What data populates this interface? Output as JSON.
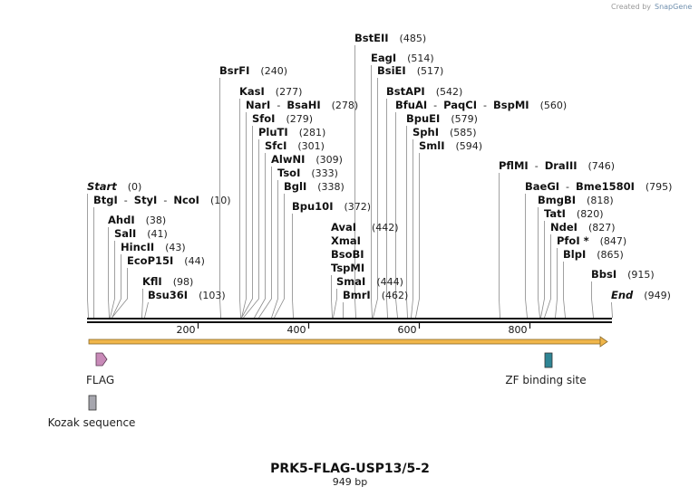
{
  "credit": {
    "prefix": "Created by",
    "brand": "SnapGene"
  },
  "map": {
    "name": "PRK5-FLAG-USP13/5-2",
    "length_label": "949 bp",
    "length": 949
  },
  "enzymes": [
    {
      "names": [
        "BstEII"
      ],
      "pos": 485,
      "label": "(485)"
    },
    {
      "names": [
        "EagI"
      ],
      "pos": 514,
      "label": "(514)"
    },
    {
      "names": [
        "BsiEI"
      ],
      "pos": 517,
      "label": "(517)"
    },
    {
      "names": [
        "BsrFI"
      ],
      "pos": 240,
      "label": "(240)"
    },
    {
      "names": [
        "BstAPI"
      ],
      "pos": 542,
      "label": "(542)"
    },
    {
      "names": [
        "KasI"
      ],
      "pos": 277,
      "label": "(277)"
    },
    {
      "names": [
        "NarI",
        "BsaHI"
      ],
      "pos": 278,
      "label": "(278)"
    },
    {
      "names": [
        "BfuAI",
        "PaqCI",
        "BspMI"
      ],
      "pos": 560,
      "label": "(560)"
    },
    {
      "names": [
        "SfoI"
      ],
      "pos": 279,
      "label": "(279)"
    },
    {
      "names": [
        "BpuEI"
      ],
      "pos": 579,
      "label": "(579)"
    },
    {
      "names": [
        "PluTI"
      ],
      "pos": 281,
      "label": "(281)"
    },
    {
      "names": [
        "SphI"
      ],
      "pos": 585,
      "label": "(585)"
    },
    {
      "names": [
        "SfcI"
      ],
      "pos": 301,
      "label": "(301)"
    },
    {
      "names": [
        "SmlI"
      ],
      "pos": 594,
      "label": "(594)"
    },
    {
      "names": [
        "AlwNI"
      ],
      "pos": 309,
      "label": "(309)"
    },
    {
      "names": [
        "PflMI",
        "DraIII"
      ],
      "pos": 746,
      "label": "(746)"
    },
    {
      "names": [
        "TsoI"
      ],
      "pos": 333,
      "label": "(333)"
    },
    {
      "names": [
        "BglI"
      ],
      "pos": 338,
      "label": "(338)"
    },
    {
      "names": [
        "BaeGI",
        "Bme1580I"
      ],
      "pos": 795,
      "label": "(795)"
    },
    {
      "names": [
        "Start"
      ],
      "pos": 0,
      "label": "(0)",
      "italic": true
    },
    {
      "names": [
        "BtgI",
        "StyI",
        "NcoI"
      ],
      "pos": 10,
      "label": "(10)"
    },
    {
      "names": [
        "Bpu10I"
      ],
      "pos": 372,
      "label": "(372)"
    },
    {
      "names": [
        "BmgBI"
      ],
      "pos": 818,
      "label": "(818)"
    },
    {
      "names": [
        "TatI"
      ],
      "pos": 820,
      "label": "(820)"
    },
    {
      "names": [
        "AhdI"
      ],
      "pos": 38,
      "label": "(38)"
    },
    {
      "names": [
        "AvaI",
        "XmaI",
        "BsoBI",
        "TspMI"
      ],
      "pos": 442,
      "label": "(442)"
    },
    {
      "names": [
        "NdeI"
      ],
      "pos": 827,
      "label": "(827)"
    },
    {
      "names": [
        "SalI"
      ],
      "pos": 41,
      "label": "(41)"
    },
    {
      "names": [
        "PfoI *"
      ],
      "pos": 847,
      "label": "(847)"
    },
    {
      "names": [
        "HincII"
      ],
      "pos": 43,
      "label": "(43)"
    },
    {
      "names": [
        "EcoP15I"
      ],
      "pos": 44,
      "label": "(44)"
    },
    {
      "names": [
        "BlpI"
      ],
      "pos": 865,
      "label": "(865)"
    },
    {
      "names": [
        "BbsI"
      ],
      "pos": 915,
      "label": "(915)"
    },
    {
      "names": [
        "KflI"
      ],
      "pos": 98,
      "label": "(98)"
    },
    {
      "names": [
        "SmaI"
      ],
      "pos": 444,
      "label": "(444)"
    },
    {
      "names": [
        "Bsu36I"
      ],
      "pos": 103,
      "label": "(103)"
    },
    {
      "names": [
        "BmrI"
      ],
      "pos": 462,
      "label": "(462)"
    },
    {
      "names": [
        "End"
      ],
      "pos": 949,
      "label": "(949)",
      "italic": true
    }
  ],
  "ticks": [
    "200",
    "400",
    "600",
    "800"
  ],
  "tick_values": [
    200,
    400,
    600,
    800
  ],
  "features": [
    {
      "label": "FLAG",
      "start": 13,
      "end": 37,
      "color": "#c88ab8",
      "shape": "arrow"
    },
    {
      "label": "ZF binding site",
      "start": 828,
      "end": 838,
      "color": "#2f8595",
      "shape": "box"
    },
    {
      "label": "Kozak sequence",
      "start": 4,
      "end": 13,
      "color": "#a6a6ae",
      "shape": "box"
    }
  ],
  "orf": {
    "start": 0,
    "end": 940,
    "color": "#f0b64a"
  }
}
